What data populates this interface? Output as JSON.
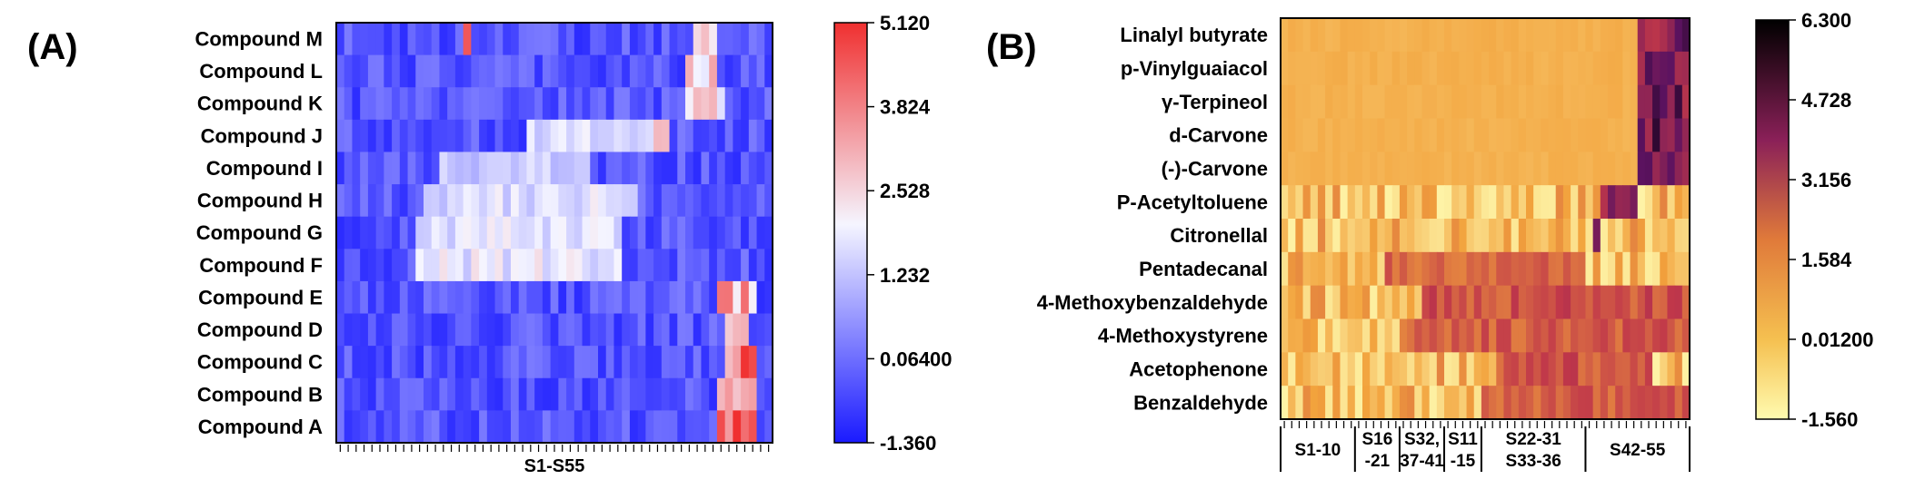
{
  "chart_data": [
    {
      "type": "heatmap",
      "panel_label": "(A)",
      "title": "",
      "xlabel": "S1-S55",
      "ylabel": "",
      "rows": [
        "Compound M",
        "Compound L",
        "Compound K",
        "Compound J",
        "Compound I",
        "Compound H",
        "Compound G",
        "Compound F",
        "Compound E",
        "Compound D",
        "Compound C",
        "Compound B",
        "Compound A"
      ],
      "n_columns": 55,
      "colorbar": {
        "ticks": [
          "5.120",
          "3.824",
          "2.528",
          "1.232",
          "0.06400",
          "-1.360"
        ],
        "min": -1.36,
        "max": 5.12,
        "colors": [
          "#1a1aff",
          "#f5f5ff",
          "#f03030"
        ]
      },
      "hot_regions": [
        {
          "row": "Compound M",
          "cols": [
            17,
            17
          ],
          "value": 4.6
        },
        {
          "row": "Compound M",
          "cols": [
            46,
            48
          ],
          "value": 3.2
        },
        {
          "row": "Compound L",
          "cols": [
            45,
            48
          ],
          "value": 3.0
        },
        {
          "row": "Compound K",
          "cols": [
            45,
            49
          ],
          "value": 2.6
        },
        {
          "row": "Compound J",
          "cols": [
            25,
            40
          ],
          "value": 1.7
        },
        {
          "row": "Compound J",
          "cols": [
            41,
            42
          ],
          "value": 3.8
        },
        {
          "row": "Compound I",
          "cols": [
            14,
            32
          ],
          "value": 1.5
        },
        {
          "row": "Compound H",
          "cols": [
            12,
            38
          ],
          "value": 1.8
        },
        {
          "row": "Compound G",
          "cols": [
            11,
            36
          ],
          "value": 2.0
        },
        {
          "row": "Compound F",
          "cols": [
            11,
            36
          ],
          "value": 2.0
        },
        {
          "row": "Compound E",
          "cols": [
            49,
            53
          ],
          "value": 3.6
        },
        {
          "row": "Compound D",
          "cols": [
            50,
            52
          ],
          "value": 4.4
        },
        {
          "row": "Compound C",
          "cols": [
            50,
            53
          ],
          "value": 4.6
        },
        {
          "row": "Compound B",
          "cols": [
            49,
            53
          ],
          "value": 4.0
        },
        {
          "row": "Compound A",
          "cols": [
            49,
            53
          ],
          "value": 4.8
        }
      ]
    },
    {
      "type": "heatmap",
      "panel_label": "(B)",
      "title": "",
      "xlabel": "",
      "ylabel": "",
      "rows": [
        "Linalyl butyrate",
        "p-Vinylguaiacol",
        "γ-Terpineol",
        "d-Carvone",
        "(-)-Carvone",
        "P-Acetyltoluene",
        "Citronellal",
        "Pentadecanal",
        "4-Methoxybenzaldehyde",
        "4-Methoxystyrene",
        "Acetophenone",
        "Benzaldehyde"
      ],
      "n_columns": 55,
      "column_groups": [
        {
          "label": "S1-10",
          "cols": [
            1,
            10
          ]
        },
        {
          "label": "S16\n-21",
          "cols": [
            11,
            16
          ]
        },
        {
          "label": "S32,\n37-41",
          "cols": [
            17,
            22
          ]
        },
        {
          "label": "S11\n-15",
          "cols": [
            23,
            27
          ]
        },
        {
          "label": "S22-31\nS33-36",
          "cols": [
            28,
            41
          ]
        },
        {
          "label": "S42-55",
          "cols": [
            42,
            55
          ]
        }
      ],
      "colorbar": {
        "ticks": [
          "6.300",
          "4.728",
          "3.156",
          "1.584",
          "0.01200",
          "-1.560"
        ],
        "min": -1.56,
        "max": 6.3,
        "colors": [
          "#fffbb0",
          "#f2a23c",
          "#c0374a",
          "#5c1260",
          "#000000"
        ]
      },
      "hot_regions": [
        {
          "row": "Linalyl butyrate",
          "cols": [
            49,
            55
          ],
          "value": 4.5
        },
        {
          "row": "p-Vinylguaiacol",
          "cols": [
            49,
            55
          ],
          "value": 4.0
        },
        {
          "row": "γ-Terpineol",
          "cols": [
            49,
            55
          ],
          "value": 4.5
        },
        {
          "row": "d-Carvone",
          "cols": [
            49,
            55
          ],
          "value": 4.8
        },
        {
          "row": "(-)-Carvone",
          "cols": [
            49,
            55
          ],
          "value": 5.0
        },
        {
          "row": "P-Acetyltoluene",
          "cols": [
            44,
            48
          ],
          "value": 3.5
        },
        {
          "row": "Citronellal",
          "cols": [
            43,
            43
          ],
          "value": 6.2
        },
        {
          "row": "Pentadecanal",
          "cols": [
            15,
            41
          ],
          "value": 1.8
        },
        {
          "row": "4-Methoxybenzaldehyde",
          "cols": [
            20,
            55
          ],
          "value": 2.2
        },
        {
          "row": "4-Methoxystyrene",
          "cols": [
            18,
            55
          ],
          "value": 2.0
        },
        {
          "row": "Acetophenone",
          "cols": [
            30,
            50
          ],
          "value": 2.2
        },
        {
          "row": "Benzaldehyde",
          "cols": [
            28,
            55
          ],
          "value": 2.0
        }
      ]
    }
  ]
}
